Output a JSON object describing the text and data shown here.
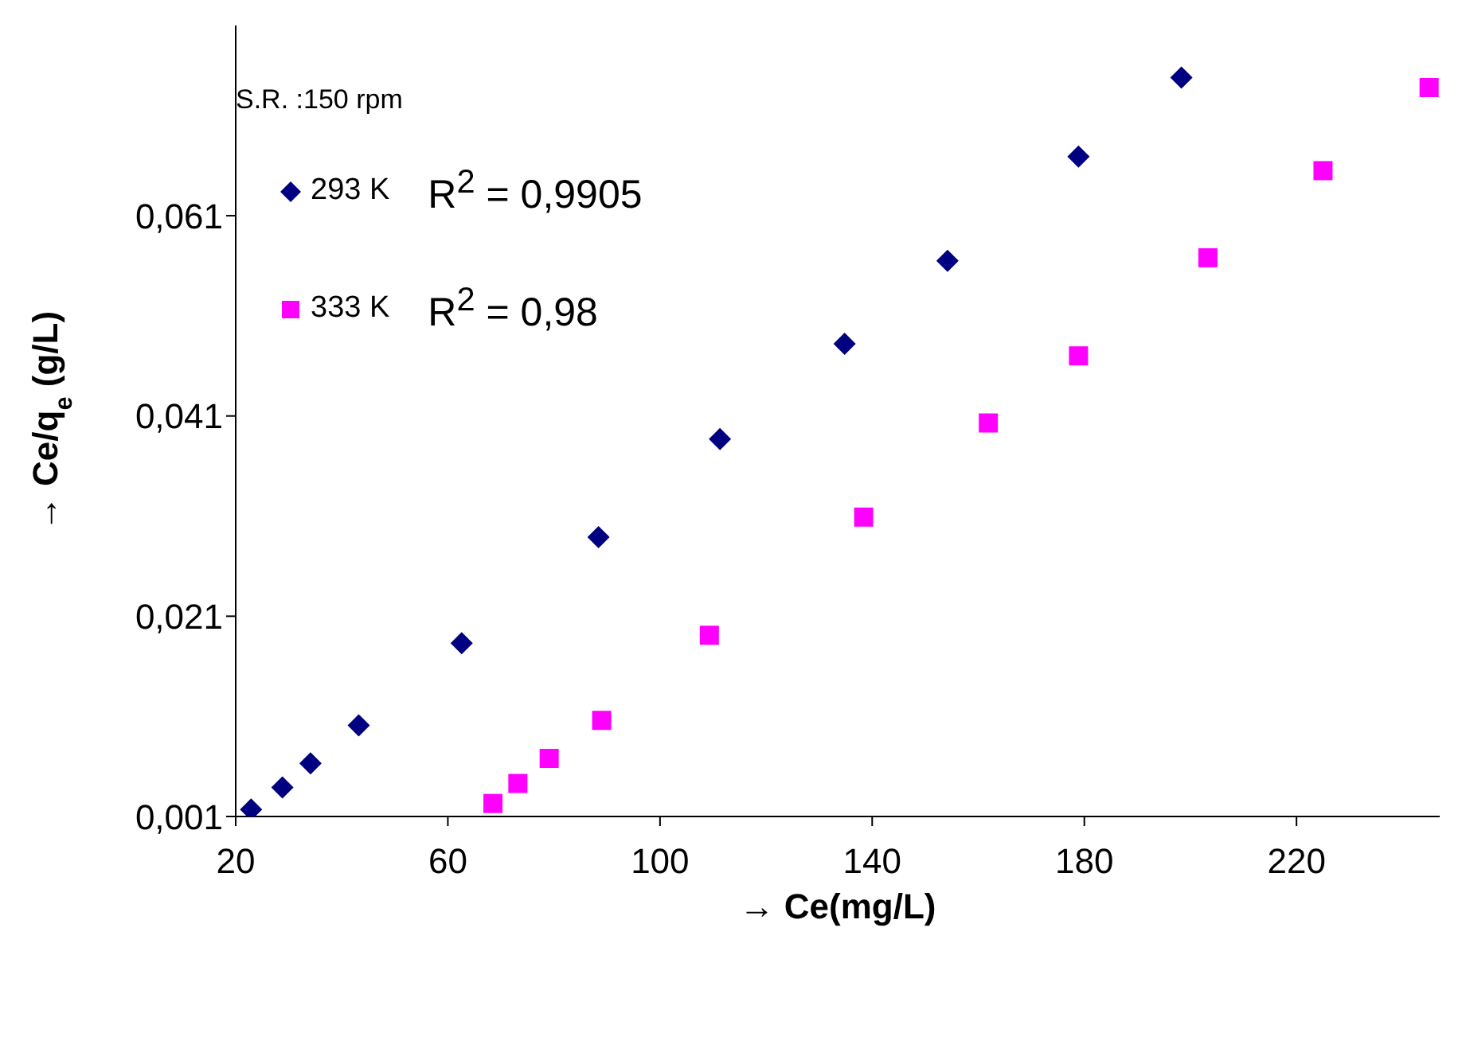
{
  "chart_data": {
    "type": "scatter",
    "xlabel": "→ Ce(mg/L)",
    "ylabel": "→ Ce/q$_{e}$ (g/L)",
    "xlim": [
      20,
      247
    ],
    "xticks": [
      20,
      60,
      100,
      140,
      180,
      220
    ],
    "ylim": [
      0.001,
      0.08
    ],
    "yticks": [
      {
        "value": 0.001,
        "label": "0,001"
      },
      {
        "value": 0.021,
        "label": "0,021"
      },
      {
        "value": 0.041,
        "label": "0,041"
      },
      {
        "value": 0.061,
        "label": "0,061"
      }
    ],
    "grid": false,
    "legend": "top left",
    "annotations": [
      "S.R. :150 rpm",
      "R$^{2}$ = 0,9905",
      "R$^{2}$ = 0,98"
    ],
    "series": [
      {
        "name": "293 K",
        "color": "#000080",
        "marker": "diamond",
        "x": [
          22.9,
          28.8,
          34.1,
          43.2,
          62.6,
          88.4,
          111.3,
          134.8,
          154.2,
          178.9,
          198.3
        ],
        "values": [
          0.0017,
          0.0039,
          0.0063,
          0.0101,
          0.0183,
          0.0289,
          0.0387,
          0.0482,
          0.0565,
          0.0669,
          0.0748
        ]
      },
      {
        "name": "333 K",
        "color": "#ff00ff",
        "marker": "square",
        "x": [
          68.5,
          73.2,
          79.1,
          89.0,
          109.3,
          138.4,
          161.9,
          178.9,
          203.3,
          225.0,
          245.0
        ],
        "values": [
          0.0023,
          0.0043,
          0.0068,
          0.0106,
          0.0191,
          0.0309,
          0.0403,
          0.047,
          0.0568,
          0.0655,
          0.0738
        ]
      }
    ]
  }
}
